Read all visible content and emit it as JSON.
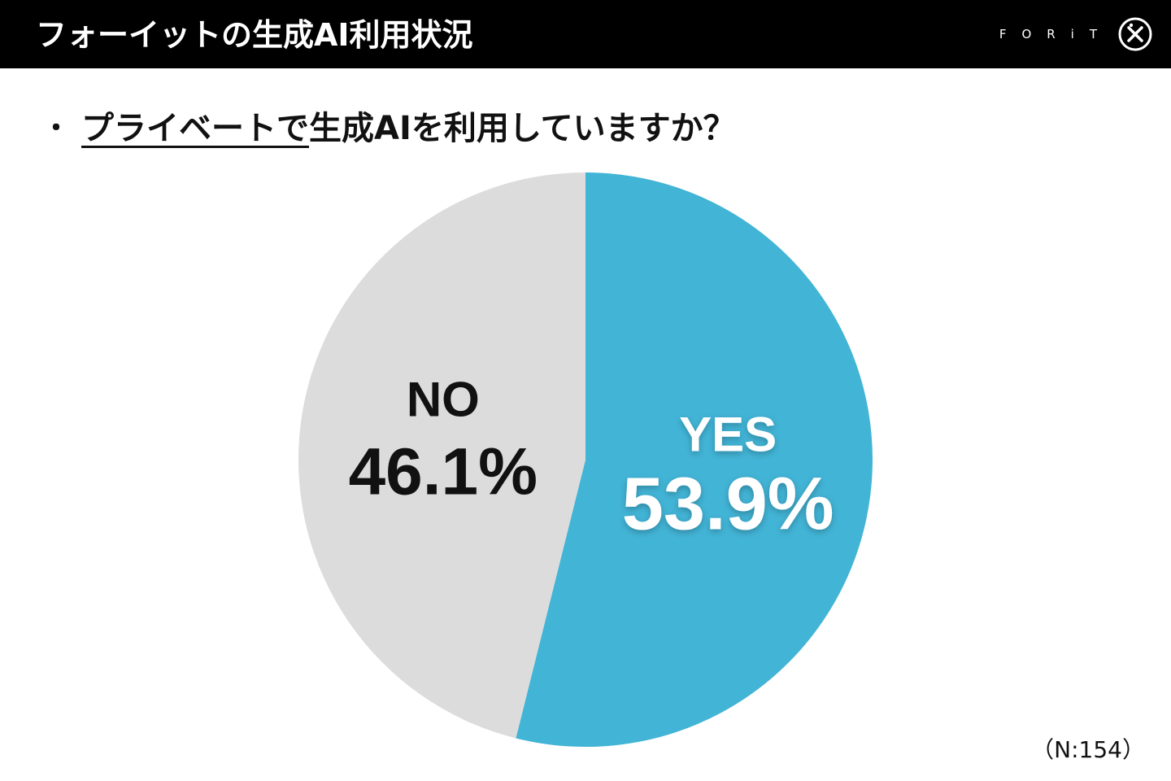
{
  "header": {
    "title": "フォーイットの生成AI利用状況",
    "brand": "FORiT"
  },
  "question": {
    "bullet": "・",
    "underlined": "プライベートで",
    "rest": "生成AIを利用していますか？"
  },
  "chart_data": {
    "type": "pie",
    "title": "",
    "slices": [
      {
        "name": "YES",
        "value": 53.9,
        "label": "53.9%",
        "color": "#42b4d6",
        "text_color": "#ffffff"
      },
      {
        "name": "NO",
        "value": 46.1,
        "label": "46.1%",
        "color": "#dcdcdc",
        "text_color": "#111111"
      }
    ],
    "start_angle": "12 o'clock",
    "direction": "clockwise"
  },
  "footnote": "（N:154）",
  "colors": {
    "header_bg": "#000000",
    "accent": "#42b4d6",
    "neutral": "#dcdcdc"
  }
}
